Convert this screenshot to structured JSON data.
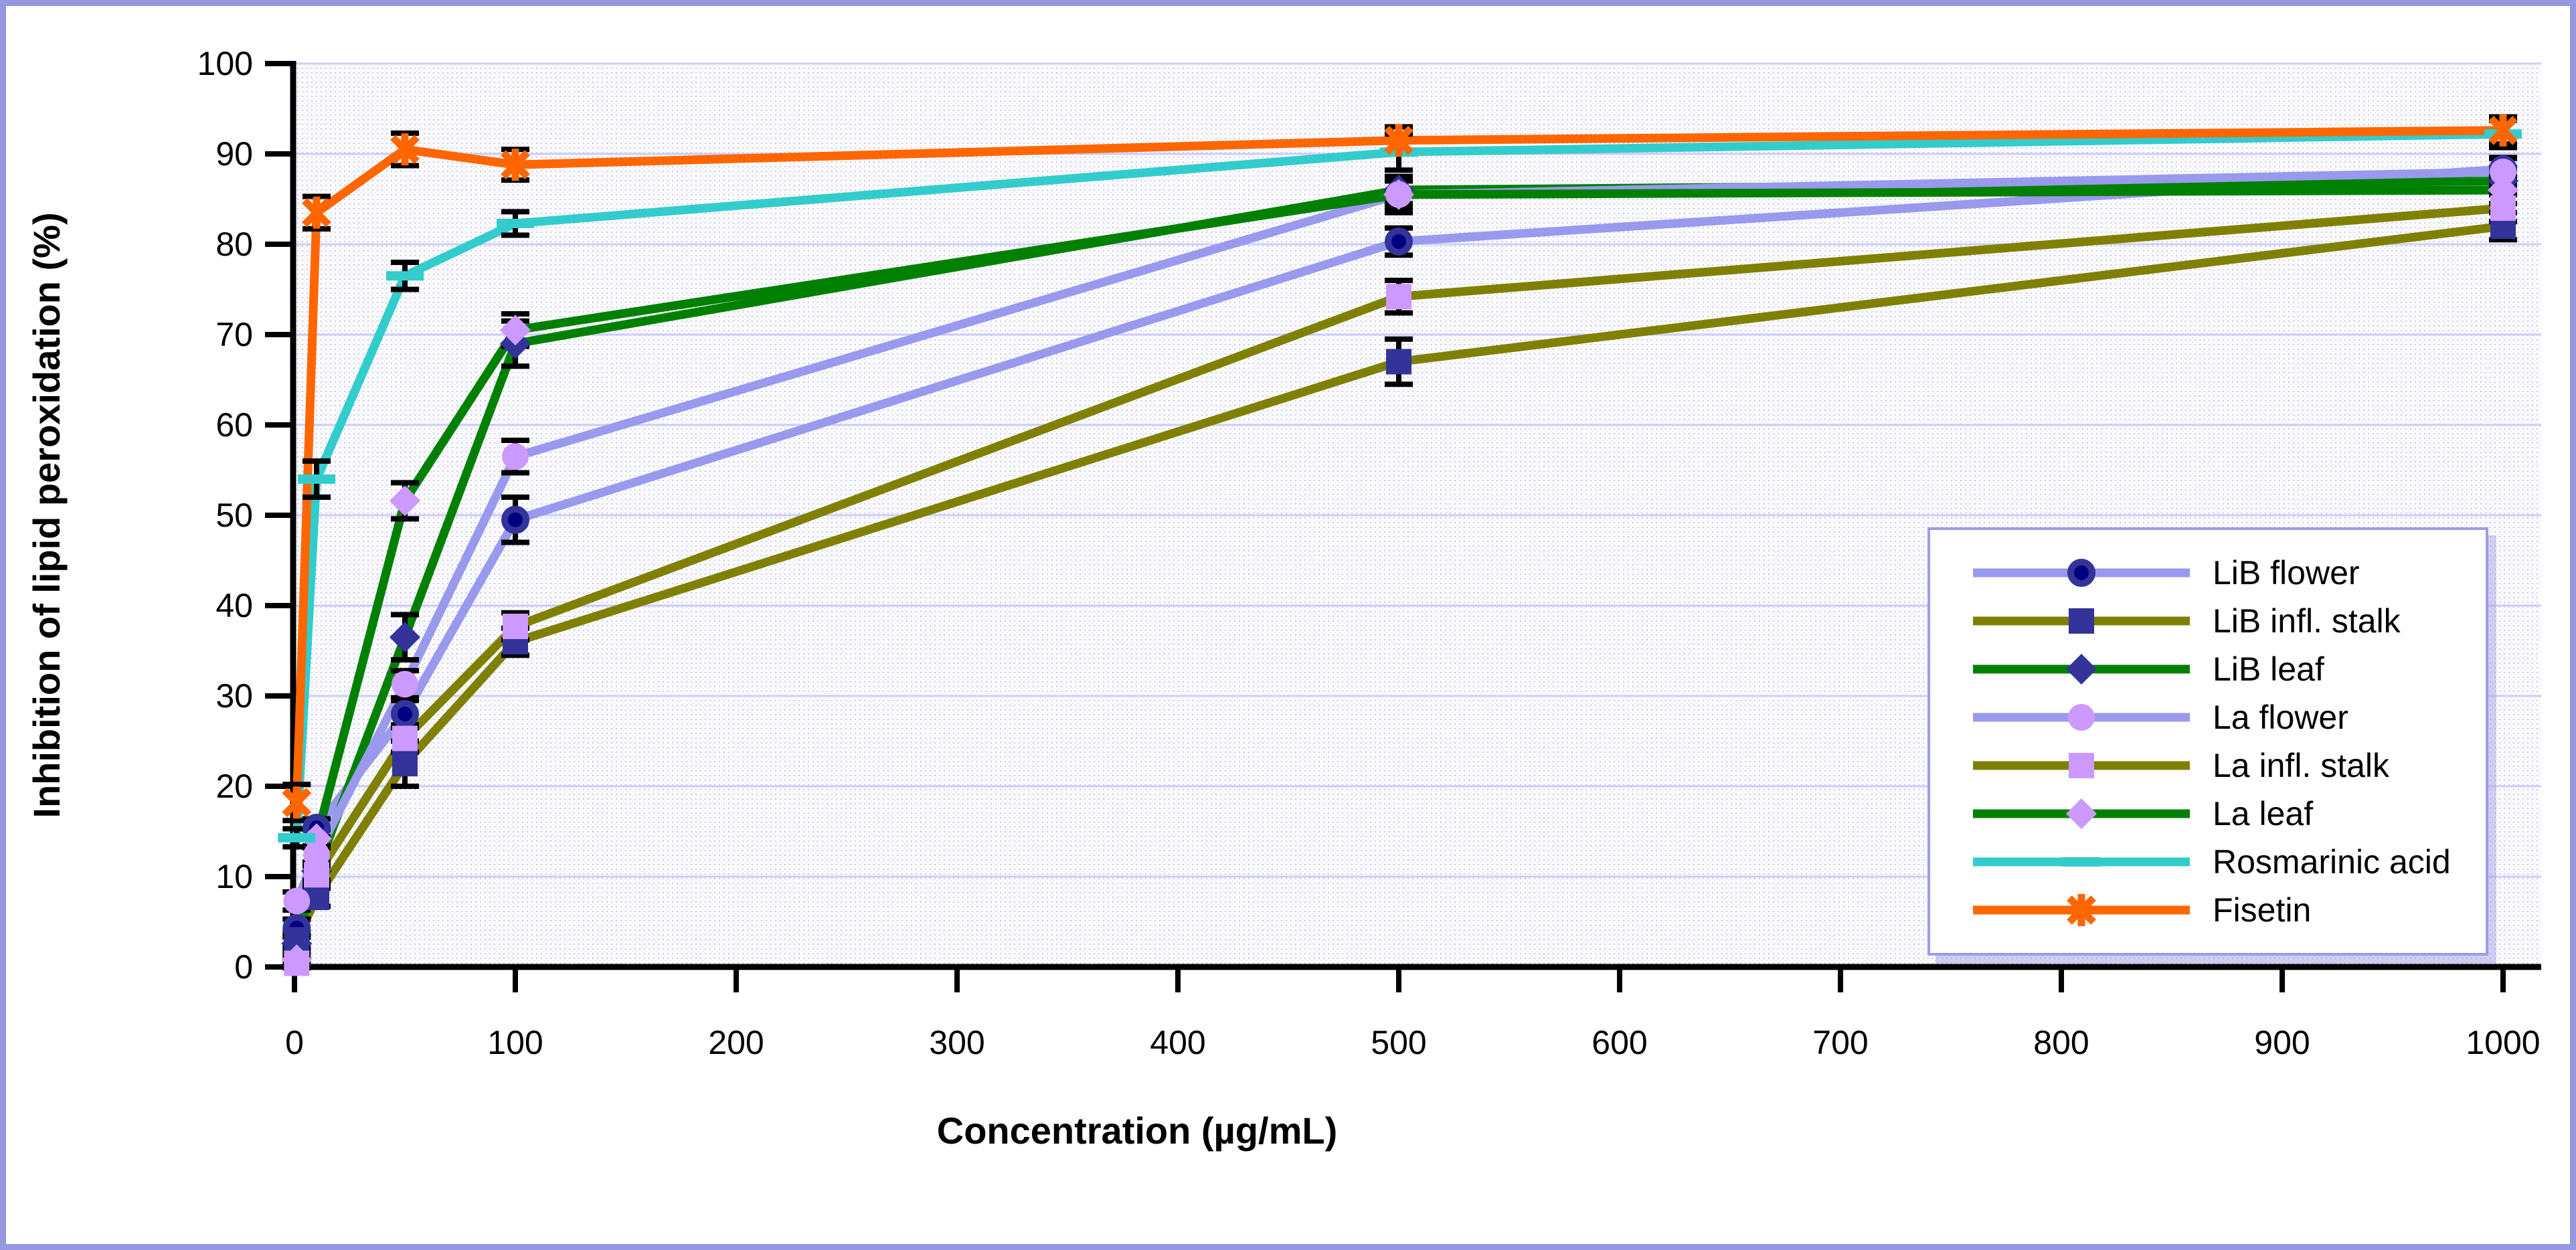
{
  "chart_data": {
    "type": "line",
    "title": "",
    "xlabel": "Concentration (µg/mL)",
    "ylabel": "Inhibition of lipid peroxidation (%)",
    "xlim": [
      0,
      1000
    ],
    "ylim": [
      0,
      100
    ],
    "x_ticks": [
      0,
      100,
      200,
      300,
      400,
      500,
      600,
      700,
      800,
      900,
      1000
    ],
    "y_ticks": [
      0,
      10,
      20,
      30,
      40,
      50,
      60,
      70,
      80,
      90,
      100
    ],
    "grid": "horizontal-only",
    "legend_position": "middle-right",
    "x": [
      1,
      10,
      50,
      100,
      500,
      1000
    ],
    "series": [
      {
        "name": "LiB flower",
        "slug": "lib-flower",
        "line_color": "#9999ee",
        "marker": "circle",
        "marker_color": "#333399",
        "values": [
          4.3,
          15.4,
          28.0,
          49.5,
          80.3,
          88.3
        ],
        "errors": [
          1.0,
          1.0,
          1.5,
          2.5,
          1.5,
          1.3
        ]
      },
      {
        "name": "LiB infl. stalk",
        "slug": "lib-infl-stalk",
        "line_color": "#808000",
        "marker": "square",
        "marker_color": "#333399",
        "values": [
          3.0,
          7.7,
          22.5,
          36.0,
          67.0,
          82.0
        ],
        "errors": [
          0.8,
          1.0,
          2.5,
          1.5,
          2.5,
          1.5
        ]
      },
      {
        "name": "LiB leaf",
        "slug": "lib-leaf",
        "line_color": "#008000",
        "marker": "diamond",
        "marker_color": "#333399",
        "values": [
          2.6,
          10.6,
          36.5,
          69.0,
          86.0,
          87.0
        ],
        "errors": [
          0.8,
          1.0,
          2.5,
          2.5,
          1.5,
          1.5
        ]
      },
      {
        "name": "La flower",
        "slug": "la-flower",
        "line_color": "#9999ee",
        "marker": "circle",
        "marker_color": "#cc99ff",
        "values": [
          7.3,
          12.4,
          31.3,
          56.5,
          85.5,
          88.0
        ],
        "errors": [
          1.0,
          1.0,
          1.5,
          1.8,
          1.5,
          1.5
        ]
      },
      {
        "name": "La infl. stalk",
        "slug": "la-infl-stalk",
        "line_color": "#808000",
        "marker": "square",
        "marker_color": "#cc99ff",
        "values": [
          0.4,
          10.2,
          25.3,
          37.7,
          74.2,
          84.0
        ],
        "errors": [
          0.5,
          1.0,
          1.5,
          1.5,
          1.8,
          1.5
        ]
      },
      {
        "name": "La leaf",
        "slug": "la-leaf",
        "line_color": "#008000",
        "marker": "diamond",
        "marker_color": "#cc99ff",
        "values": [
          0.8,
          14.2,
          51.6,
          70.5,
          85.5,
          86.0
        ],
        "errors": [
          0.5,
          1.0,
          2.0,
          1.8,
          2.0,
          1.5
        ]
      },
      {
        "name": "Rosmarinic acid",
        "slug": "rosmarinic-acid",
        "line_color": "#33cccc",
        "marker": "dash",
        "marker_color": "#33cccc",
        "values": [
          14.3,
          54.0,
          76.5,
          82.3,
          90.2,
          92.2
        ],
        "errors": [
          1.0,
          2.0,
          1.5,
          1.3,
          2.0,
          1.5
        ]
      },
      {
        "name": "Fisetin",
        "slug": "fisetin",
        "line_color": "#ff6600",
        "marker": "star",
        "marker_color": "#ff6600",
        "values": [
          18.2,
          83.5,
          90.5,
          88.8,
          91.5,
          92.6
        ],
        "errors": [
          2.0,
          1.8,
          1.8,
          1.7,
          1.5,
          1.5
        ]
      }
    ],
    "error_bar_color": "#000000"
  },
  "style_colors": {
    "figure_border": "#9697e0",
    "gridline": "#ccccff",
    "plot_dot_texture": "#9f9fe2",
    "axis": "#000000",
    "legend_border": "#9b9bec"
  }
}
